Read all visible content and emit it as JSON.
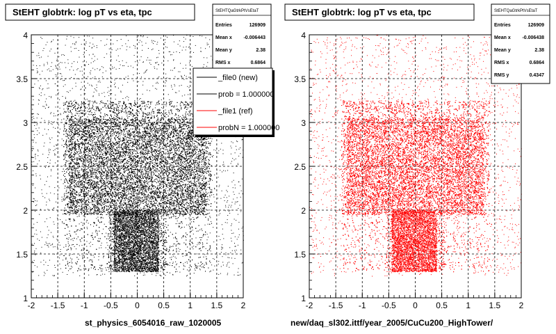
{
  "chart_data": [
    {
      "type": "scatter",
      "title": "StEHT globtrk: log pT vs eta, tpc",
      "xlabel": "st_physics_6054016_raw_1020005",
      "ylabel": "",
      "xlim": [
        -2,
        2
      ],
      "ylim": [
        1,
        4
      ],
      "x_ticks": [
        "-2",
        "-1.5",
        "-1",
        "-0.5",
        "0",
        "0.5",
        "1",
        "1.5",
        "2"
      ],
      "y_ticks": [
        "1",
        "1.5",
        "2",
        "2.5",
        "3",
        "3.5",
        "4"
      ],
      "grid": true,
      "point_color": "#000000",
      "dense_region": {
        "eta": [
          -1.4,
          1.4
        ],
        "logpt": [
          1.3,
          3.25
        ]
      },
      "core_region": {
        "eta": [
          -1.3,
          1.3
        ],
        "logpt": [
          1.95,
          3.05
        ]
      },
      "stats": {
        "name": "StEHTQaGtrkPtVsEtaT",
        "rows": [
          {
            "label": "Entries",
            "value": "126909"
          },
          {
            "label": "Mean x",
            "value": "-0.006443"
          },
          {
            "label": "Mean y",
            "value": "2.38"
          },
          {
            "label": "RMS x",
            "value": "0.6864"
          }
        ]
      },
      "legend": {
        "placement": "top-right",
        "entries": [
          {
            "label": "_file0 (new)",
            "color": "#000000"
          },
          {
            "label": "prob = 1.000000",
            "color": "#000000"
          },
          {
            "label": "_file1 (ref)",
            "color": "#ff0000"
          },
          {
            "label": "probN = 1.000000",
            "color": "#ff0000"
          }
        ]
      }
    },
    {
      "type": "scatter",
      "title": "StEHT globtrk: log pT vs eta, tpc",
      "xlabel": "new/daq_sl302.ittf/year_2005/CuCu200_HighTower/",
      "ylabel": "",
      "xlim": [
        -2,
        2
      ],
      "ylim": [
        1,
        4
      ],
      "x_ticks": [
        "-2",
        "-1.5",
        "-1",
        "-0.5",
        "0",
        "0.5",
        "1",
        "1.5",
        "2"
      ],
      "y_ticks": [
        "1",
        "1.5",
        "2",
        "2.5",
        "3",
        "3.5",
        "4"
      ],
      "grid": true,
      "point_color": "#ff0000",
      "dense_region": {
        "eta": [
          -1.4,
          1.4
        ],
        "logpt": [
          1.3,
          3.25
        ]
      },
      "core_region": {
        "eta": [
          -1.3,
          1.3
        ],
        "logpt": [
          1.95,
          3.05
        ]
      },
      "stats": {
        "name": "StEHTQaGtrkPtVsEtaT",
        "rows": [
          {
            "label": "Entries",
            "value": "126909"
          },
          {
            "label": "Mean x",
            "value": "-0.006438"
          },
          {
            "label": "Mean y",
            "value": "2.38"
          },
          {
            "label": "RMS x",
            "value": "0.6864"
          },
          {
            "label": "RMS y",
            "value": "0.4347"
          }
        ]
      }
    }
  ]
}
